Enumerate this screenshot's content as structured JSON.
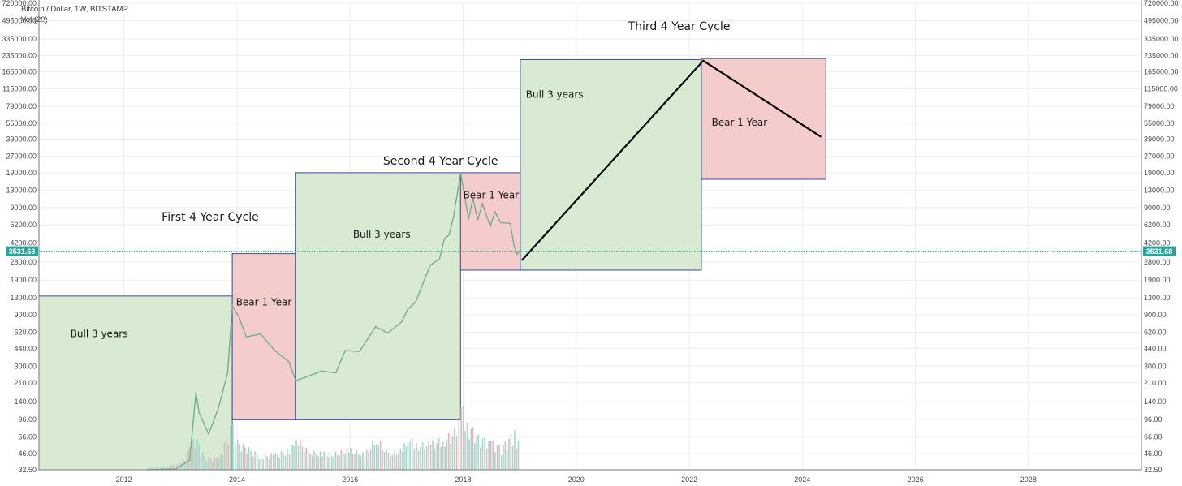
{
  "legend": {
    "symbol": "Bitcoin / Dollar, 1W, BITSTAMP",
    "volume": "Vol (20)"
  },
  "colors": {
    "bull_fill": "#d9ead3",
    "bear_fill": "#f4cccc",
    "box_stroke": "#3c4f8f",
    "price_up": "#6aab8e",
    "price_down": "#d98b8b",
    "vol_up": "#9fd8cf",
    "vol_down": "#f0b4b4",
    "last_price": "#26a69a",
    "grid": "#e9edf2"
  },
  "chart_data": {
    "type": "line",
    "y_scale": "log",
    "ylim": [
      32.5,
      720000
    ],
    "xlim": [
      "2010-07-01",
      "2029-12-31"
    ],
    "y_ticks": [
      "32.50",
      "46.00",
      "66.00",
      "96.00",
      "140.00",
      "210.00",
      "300.00",
      "440.00",
      "620.00",
      "900.00",
      "1300.00",
      "1900.00",
      "2800.00",
      "4200.00",
      "6200.00",
      "9000.00",
      "13000.00",
      "19000.00",
      "27000.00",
      "39000.00",
      "55000.00",
      "79000.00",
      "115000.00",
      "165000.00",
      "235000.00",
      "335000.00",
      "495000.00",
      "720000.00"
    ],
    "x_ticks": [
      "2012",
      "2014",
      "2016",
      "2018",
      "2020",
      "2022",
      "2024",
      "2026",
      "2028"
    ],
    "last_price": 3531.68,
    "last_price_label": "3531.68",
    "price_series": [
      [
        "2012-06-01",
        32.5
      ],
      [
        "2012-12-01",
        33
      ],
      [
        "2013-03-01",
        40
      ],
      [
        "2013-04-10",
        170
      ],
      [
        "2013-05-01",
        110
      ],
      [
        "2013-07-01",
        70
      ],
      [
        "2013-09-01",
        120
      ],
      [
        "2013-11-01",
        260
      ],
      [
        "2013-12-01",
        1100
      ],
      [
        "2014-01-15",
        850
      ],
      [
        "2014-03-01",
        560
      ],
      [
        "2014-06-01",
        600
      ],
      [
        "2014-09-01",
        420
      ],
      [
        "2014-12-01",
        330
      ],
      [
        "2015-01-15",
        220
      ],
      [
        "2015-04-01",
        240
      ],
      [
        "2015-07-01",
        270
      ],
      [
        "2015-10-01",
        260
      ],
      [
        "2015-12-01",
        420
      ],
      [
        "2016-03-01",
        410
      ],
      [
        "2016-06-15",
        700
      ],
      [
        "2016-09-01",
        610
      ],
      [
        "2016-12-01",
        780
      ],
      [
        "2017-01-05",
        1000
      ],
      [
        "2017-03-01",
        1200
      ],
      [
        "2017-06-01",
        2600
      ],
      [
        "2017-08-01",
        3000
      ],
      [
        "2017-09-01",
        4600
      ],
      [
        "2017-10-01",
        5000
      ],
      [
        "2017-11-01",
        7500
      ],
      [
        "2017-12-15",
        19000
      ],
      [
        "2018-02-05",
        7000
      ],
      [
        "2018-03-05",
        11000
      ],
      [
        "2018-04-05",
        6900
      ],
      [
        "2018-05-05",
        9800
      ],
      [
        "2018-06-25",
        6000
      ],
      [
        "2018-07-25",
        8200
      ],
      [
        "2018-09-01",
        6500
      ],
      [
        "2018-11-01",
        6400
      ],
      [
        "2018-11-25",
        4000
      ],
      [
        "2018-12-15",
        3300
      ],
      [
        "2018-12-31",
        3531.68
      ]
    ],
    "projection": [
      [
        "2019-01-15",
        2900
      ],
      [
        "2022-04-01",
        210000
      ],
      [
        "2024-05-01",
        41000
      ]
    ],
    "annotations": [
      {
        "type": "bull",
        "x0": "2010-07-01",
        "x1": "2013-12-01",
        "y0": 32.5,
        "y1": 1350,
        "label": "Bull 3 years",
        "lx": "2011-01-20",
        "ly": 560
      },
      {
        "type": "bear",
        "x0": "2013-12-01",
        "x1": "2015-01-15",
        "y0": 95,
        "y1": 3350,
        "label": "Bear 1 Year",
        "lx": "2013-12-25",
        "ly": 1100
      },
      {
        "type": "bull",
        "x0": "2015-01-15",
        "x1": "2017-12-15",
        "y0": 95,
        "y1": 19000,
        "label": "Bull 3 years",
        "lx": "2016-01-20",
        "ly": 4700
      },
      {
        "type": "bear",
        "x0": "2017-12-15",
        "x1": "2019-01-05",
        "y0": 2350,
        "y1": 19000,
        "label": "Bear 1 Year",
        "lx": "2018-01-01",
        "ly": 11000
      },
      {
        "type": "bull",
        "x0": "2019-01-05",
        "x1": "2022-03-20",
        "y0": 2350,
        "y1": 215000,
        "label": "Bull 3 years",
        "lx": "2019-02-10",
        "ly": 95000
      },
      {
        "type": "bear",
        "x0": "2022-03-20",
        "x1": "2024-06-01",
        "y0": 16500,
        "y1": 220000,
        "label": "Bear 1 Year",
        "lx": "2022-05-25",
        "ly": 52000
      }
    ],
    "titles": [
      {
        "text": "First 4 Year Cycle",
        "x": "2012-09-01",
        "y": 6800
      },
      {
        "text": "Second 4 Year Cycle",
        "x": "2016-08-01",
        "y": 22500
      },
      {
        "text": "Third 4 Year Cycle",
        "x": "2020-12-01",
        "y": 405000
      }
    ],
    "volume": [
      [
        "2012-06-01",
        2
      ],
      [
        "2012-10-01",
        3
      ],
      [
        "2013-01-01",
        6
      ],
      [
        "2013-04-01",
        30
      ],
      [
        "2013-06-01",
        12
      ],
      [
        "2013-09-01",
        10
      ],
      [
        "2013-11-01",
        32
      ],
      [
        "2013-12-01",
        42
      ],
      [
        "2014-01-01",
        25
      ],
      [
        "2014-03-01",
        20
      ],
      [
        "2014-06-01",
        12
      ],
      [
        "2014-09-01",
        14
      ],
      [
        "2014-12-01",
        18
      ],
      [
        "2015-01-15",
        30
      ],
      [
        "2015-04-01",
        16
      ],
      [
        "2015-07-01",
        15
      ],
      [
        "2015-09-01",
        14
      ],
      [
        "2016-01-01",
        18
      ],
      [
        "2016-04-01",
        14
      ],
      [
        "2016-06-15",
        28
      ],
      [
        "2016-09-01",
        14
      ],
      [
        "2016-12-01",
        18
      ],
      [
        "2017-01-05",
        30
      ],
      [
        "2017-03-01",
        22
      ],
      [
        "2017-06-01",
        24
      ],
      [
        "2017-09-01",
        28
      ],
      [
        "2017-11-01",
        34
      ],
      [
        "2017-12-15",
        58
      ],
      [
        "2018-02-05",
        40
      ],
      [
        "2018-04-05",
        30
      ],
      [
        "2018-06-25",
        26
      ],
      [
        "2018-09-01",
        20
      ],
      [
        "2018-11-25",
        34
      ],
      [
        "2018-12-31",
        22
      ]
    ]
  }
}
